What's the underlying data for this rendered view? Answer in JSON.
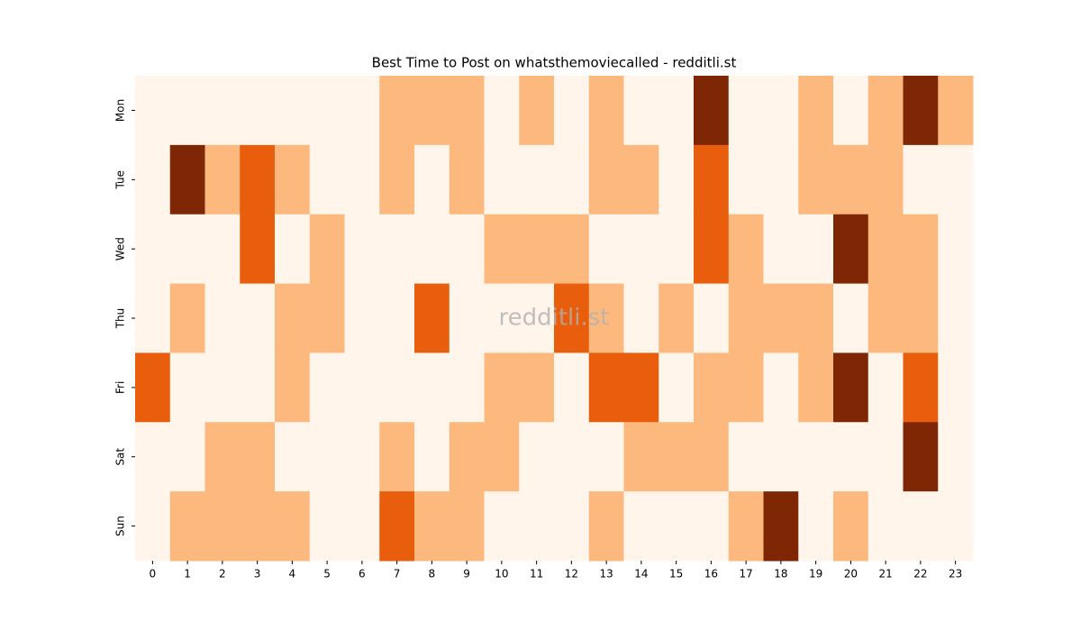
{
  "chart_data": {
    "type": "heatmap",
    "title": "Best Time to Post on whatsthemoviecalled - redditli.st",
    "watermark": "redditli.st",
    "x": [
      0,
      1,
      2,
      3,
      4,
      5,
      6,
      7,
      8,
      9,
      10,
      11,
      12,
      13,
      14,
      15,
      16,
      17,
      18,
      19,
      20,
      21,
      22,
      23
    ],
    "y": [
      "Mon",
      "Tue",
      "Wed",
      "Thu",
      "Fri",
      "Sat",
      "Sun"
    ],
    "values": [
      [
        0,
        0,
        0,
        0,
        0,
        0,
        0,
        1,
        1,
        1,
        0,
        1,
        0,
        1,
        0,
        0,
        3,
        0,
        0,
        1,
        0,
        1,
        3,
        1
      ],
      [
        0,
        3,
        1,
        2,
        1,
        0,
        0,
        1,
        0,
        1,
        0,
        0,
        0,
        1,
        1,
        0,
        2,
        0,
        0,
        1,
        1,
        1,
        0,
        0
      ],
      [
        0,
        0,
        0,
        2,
        0,
        1,
        0,
        0,
        0,
        0,
        1,
        1,
        1,
        0,
        0,
        0,
        2,
        1,
        0,
        0,
        3,
        1,
        1,
        0
      ],
      [
        0,
        1,
        0,
        0,
        1,
        1,
        0,
        0,
        2,
        0,
        0,
        0,
        2,
        1,
        0,
        1,
        0,
        1,
        1,
        1,
        0,
        1,
        1,
        0
      ],
      [
        2,
        0,
        0,
        0,
        1,
        0,
        0,
        0,
        0,
        0,
        1,
        1,
        0,
        2,
        2,
        0,
        1,
        1,
        0,
        1,
        3,
        0,
        2,
        0
      ],
      [
        0,
        0,
        1,
        1,
        0,
        0,
        0,
        1,
        0,
        1,
        1,
        0,
        0,
        0,
        1,
        1,
        1,
        0,
        0,
        0,
        0,
        0,
        3,
        0
      ],
      [
        0,
        1,
        1,
        1,
        1,
        0,
        0,
        2,
        1,
        1,
        0,
        0,
        0,
        1,
        0,
        0,
        0,
        1,
        3,
        0,
        1,
        0,
        0,
        0
      ]
    ],
    "zlim": [
      0,
      3
    ],
    "colorscale": [
      "#fff5eb",
      "#fdb97d",
      "#e95e0d",
      "#7f2704"
    ]
  }
}
